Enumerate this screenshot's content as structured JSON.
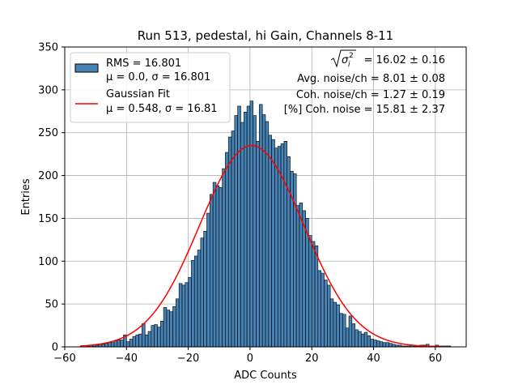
{
  "chart_data": {
    "type": "bar",
    "title": "Run 513, pedestal, hi Gain, Channels 8-11",
    "xlabel": "ADC Counts",
    "ylabel": "Entries",
    "xlim": [
      -60,
      70
    ],
    "ylim": [
      0,
      350
    ],
    "xticks": [
      -60,
      -40,
      -20,
      0,
      20,
      40,
      60
    ],
    "yticks": [
      0,
      50,
      100,
      150,
      200,
      250,
      300,
      350
    ],
    "xtick_labels": [
      "−60",
      "−40",
      "−20",
      "0",
      "20",
      "40",
      "60"
    ],
    "ytick_labels": [
      "0",
      "50",
      "100",
      "150",
      "200",
      "250",
      "300",
      "350"
    ],
    "grid": true,
    "bar_color": "#4682b4",
    "fit_color": "#ff0000",
    "bin_start": -55,
    "bin_width": 1,
    "values": [
      1,
      0,
      1,
      2,
      1,
      2,
      3,
      3,
      4,
      5,
      5,
      7,
      8,
      8,
      14,
      6,
      9,
      12,
      14,
      15,
      27,
      14,
      18,
      25,
      26,
      23,
      30,
      46,
      43,
      41,
      47,
      56,
      74,
      72,
      75,
      81,
      101,
      106,
      113,
      127,
      135,
      156,
      178,
      192,
      188,
      186,
      208,
      227,
      245,
      252,
      270,
      281,
      262,
      274,
      281,
      287,
      270,
      240,
      283,
      271,
      263,
      247,
      242,
      232,
      234,
      237,
      240,
      222,
      205,
      202,
      165,
      168,
      159,
      150,
      130,
      123,
      118,
      89,
      86,
      78,
      72,
      56,
      52,
      49,
      39,
      38,
      22,
      36,
      27,
      20,
      18,
      15,
      17,
      13,
      9,
      8,
      7,
      6,
      5,
      5,
      4,
      3,
      2,
      2,
      1,
      1,
      1,
      2,
      1,
      1,
      2,
      2,
      3,
      1,
      1,
      2,
      1,
      1,
      1,
      1
    ],
    "fit": {
      "mu": 0.548,
      "sigma": 16.81,
      "amplitude": 235,
      "x_range": [
        -55,
        63
      ]
    },
    "legend": {
      "placement": "top-left",
      "entries": [
        {
          "line1": "RMS = 16.801",
          "line2": "μ = 0.0, σ = 16.801"
        },
        {
          "line1": "Gaussian Fit",
          "line2": "μ = 0.548, σ = 16.81"
        }
      ]
    },
    "annotations": {
      "line1_value": " = 16.02 ± 0.16",
      "sigma_symbol": "σ",
      "sigma_sub": "i",
      "sigma_sup": "2",
      "line2": "Avg. noise/ch = 8.01 ± 0.08",
      "line3": "Coh. noise/ch = 1.27 ± 0.19",
      "line4": "[%] Coh. noise = 15.81 ± 2.37"
    }
  }
}
